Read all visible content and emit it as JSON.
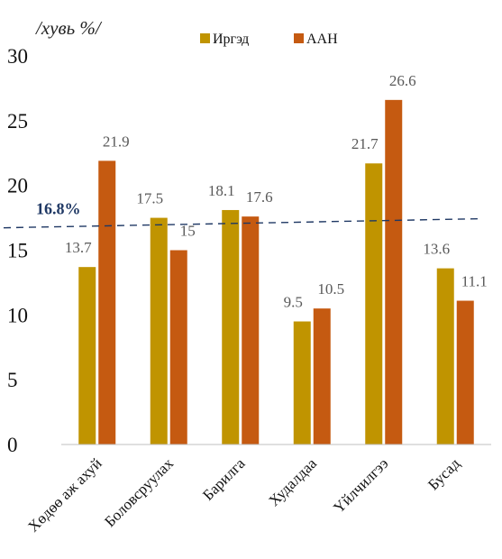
{
  "chart_data": {
    "type": "bar",
    "unit_label": "/хувь %/",
    "categories": [
      "Хөдөө аж ахуй",
      "Боловсруулах",
      "Барилга",
      "Худалдаа",
      "Үйлчилгээ",
      "Бусад"
    ],
    "series": [
      {
        "name": "Иргэд",
        "color": "#C09400",
        "values": [
          13.7,
          17.5,
          18.1,
          9.5,
          21.7,
          13.6
        ],
        "labels": [
          "13.7",
          "17.5",
          "18.1",
          "9.5",
          "21.7",
          "13.6"
        ]
      },
      {
        "name": "ААН",
        "color": "#C55A11",
        "values": [
          21.9,
          15,
          17.6,
          10.5,
          26.6,
          11.1
        ],
        "labels": [
          "21.9",
          "15",
          "17.6",
          "10.5",
          "26.6",
          "11.1"
        ]
      }
    ],
    "ylim": [
      0,
      30
    ],
    "yticks": [
      0,
      5,
      10,
      15,
      20,
      25,
      30
    ],
    "grid": false,
    "legend_position": "top",
    "reference_line": {
      "label": "16.8%",
      "value": 16.8,
      "color": "#1F3864",
      "style": "dashed"
    }
  }
}
